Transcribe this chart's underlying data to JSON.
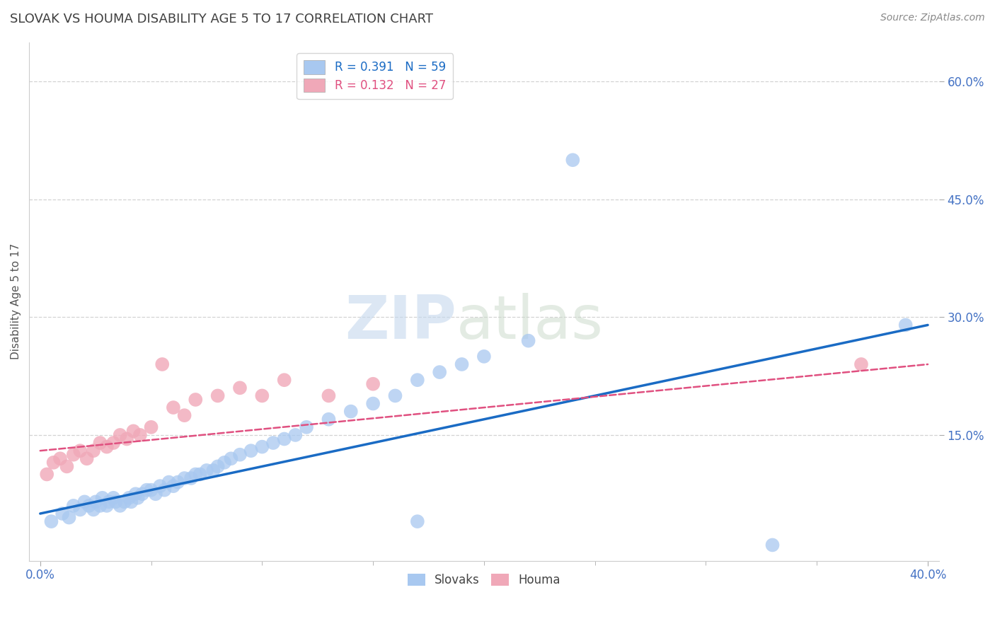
{
  "title": "SLOVAK VS HOUMA DISABILITY AGE 5 TO 17 CORRELATION CHART",
  "source": "Source: ZipAtlas.com",
  "ylabel": "Disability Age 5 to 17",
  "xlim": [
    -0.005,
    0.405
  ],
  "ylim": [
    -0.01,
    0.65
  ],
  "xticks": [
    0.0,
    0.4
  ],
  "xtick_labels": [
    "0.0%",
    "40.0%"
  ],
  "yticks": [
    0.15,
    0.3,
    0.45,
    0.6
  ],
  "ytick_labels": [
    "15.0%",
    "30.0%",
    "45.0%",
    "60.0%"
  ],
  "slovak_R": 0.391,
  "slovak_N": 59,
  "houma_R": 0.132,
  "houma_N": 27,
  "slovak_color": "#a8c8f0",
  "houma_color": "#f0a8b8",
  "slovak_line_color": "#1a6bc4",
  "houma_line_color": "#e05080",
  "background_color": "#ffffff",
  "grid_color": "#c8c8c8",
  "title_color": "#404040",
  "axis_color": "#4472c4",
  "slovak_x": [
    0.005,
    0.01,
    0.013,
    0.015,
    0.018,
    0.02,
    0.022,
    0.024,
    0.025,
    0.027,
    0.028,
    0.03,
    0.031,
    0.033,
    0.034,
    0.036,
    0.038,
    0.04,
    0.041,
    0.043,
    0.044,
    0.046,
    0.048,
    0.05,
    0.052,
    0.054,
    0.056,
    0.058,
    0.06,
    0.062,
    0.065,
    0.068,
    0.07,
    0.072,
    0.075,
    0.078,
    0.08,
    0.083,
    0.086,
    0.09,
    0.095,
    0.1,
    0.105,
    0.11,
    0.115,
    0.12,
    0.13,
    0.14,
    0.15,
    0.16,
    0.17,
    0.18,
    0.19,
    0.2,
    0.17,
    0.22,
    0.33,
    0.24,
    0.39
  ],
  "slovak_y": [
    0.04,
    0.05,
    0.045,
    0.06,
    0.055,
    0.065,
    0.06,
    0.055,
    0.065,
    0.06,
    0.07,
    0.06,
    0.065,
    0.07,
    0.065,
    0.06,
    0.065,
    0.07,
    0.065,
    0.075,
    0.07,
    0.075,
    0.08,
    0.08,
    0.075,
    0.085,
    0.08,
    0.09,
    0.085,
    0.09,
    0.095,
    0.095,
    0.1,
    0.1,
    0.105,
    0.105,
    0.11,
    0.115,
    0.12,
    0.125,
    0.13,
    0.135,
    0.14,
    0.145,
    0.15,
    0.16,
    0.17,
    0.18,
    0.19,
    0.2,
    0.22,
    0.23,
    0.24,
    0.25,
    0.04,
    0.27,
    0.01,
    0.5,
    0.29
  ],
  "houma_x": [
    0.003,
    0.006,
    0.009,
    0.012,
    0.015,
    0.018,
    0.021,
    0.024,
    0.027,
    0.03,
    0.033,
    0.036,
    0.039,
    0.042,
    0.045,
    0.05,
    0.055,
    0.06,
    0.065,
    0.07,
    0.08,
    0.09,
    0.1,
    0.11,
    0.13,
    0.15,
    0.37
  ],
  "houma_y": [
    0.1,
    0.115,
    0.12,
    0.11,
    0.125,
    0.13,
    0.12,
    0.13,
    0.14,
    0.135,
    0.14,
    0.15,
    0.145,
    0.155,
    0.15,
    0.16,
    0.24,
    0.185,
    0.175,
    0.195,
    0.2,
    0.21,
    0.2,
    0.22,
    0.2,
    0.215,
    0.24
  ],
  "slovak_line_x0": 0.0,
  "slovak_line_y0": 0.05,
  "slovak_line_x1": 0.4,
  "slovak_line_y1": 0.29,
  "houma_line_x0": 0.0,
  "houma_line_y0": 0.13,
  "houma_line_x1": 0.4,
  "houma_line_y1": 0.24
}
